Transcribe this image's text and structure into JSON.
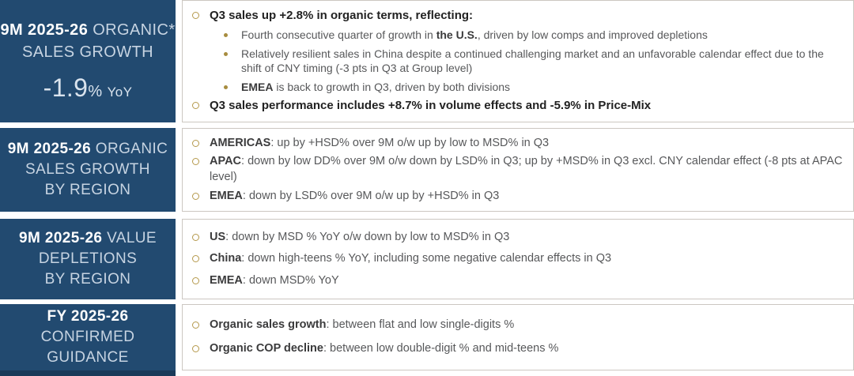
{
  "slide": {
    "colors": {
      "navy": "#224A70",
      "navy_dark": "#1A3A59",
      "gold_ring": "#B5994C",
      "gold_dot": "#A78C3F",
      "body_text": "#57585A",
      "strong_text": "#222222",
      "box_border": "#CCC7C1",
      "label_light_text": "#C7D4E2",
      "label_bold_text": "#FFFFFF"
    },
    "rows": [
      {
        "name": "organic-sales-growth",
        "label": {
          "lines": [
            [
              {
                "text": "9M 2025-26",
                "bold": true
              },
              {
                "text": " ORGANIC*",
                "bold": false
              }
            ],
            [
              {
                "text": "SALES GROWTH",
                "bold": false
              }
            ]
          ],
          "metric": {
            "value": "-1.9",
            "unit": "%",
            "suffix": "YoY"
          }
        },
        "bullets": [
          {
            "level": 1,
            "strong": true,
            "segments": [
              {
                "text": "Q3 sales up +2.8% in organic terms, reflecting:",
                "bold": true
              }
            ]
          },
          {
            "level": 2,
            "strong": false,
            "segments": [
              {
                "text": "Fourth consecutive quarter of growth in ",
                "bold": false
              },
              {
                "text": "the U.S.",
                "bold": true
              },
              {
                "text": ", driven by low comps and improved depletions",
                "bold": false
              }
            ]
          },
          {
            "level": 2,
            "strong": false,
            "segments": [
              {
                "text": "Relatively resilient sales in China despite a continued challenging market and an unfavorable calendar effect due to the shift of CNY timing (-3 pts in Q3 at Group level)",
                "bold": false
              }
            ]
          },
          {
            "level": 2,
            "strong": false,
            "segments": [
              {
                "text": "EMEA",
                "bold": true
              },
              {
                "text": " is back to growth in Q3, driven by both divisions",
                "bold": false
              }
            ]
          },
          {
            "level": 1,
            "strong": true,
            "segments": [
              {
                "text": "Q3 sales performance includes +8.7% in volume effects and -5.9% in Price-Mix",
                "bold": true
              }
            ]
          }
        ]
      },
      {
        "name": "organic-sales-growth-by-region",
        "label": {
          "lines": [
            [
              {
                "text": "9M 2025-26",
                "bold": true
              },
              {
                "text": " ORGANIC",
                "bold": false
              }
            ],
            [
              {
                "text": "SALES GROWTH",
                "bold": false
              }
            ],
            [
              {
                "text": "BY REGION",
                "bold": false
              }
            ]
          ],
          "metric": null
        },
        "bullets": [
          {
            "level": 1,
            "strong": false,
            "segments": [
              {
                "text": "AMERICAS",
                "bold": true
              },
              {
                "text": ": up by +HSD% over 9M o/w up by low to MSD% in Q3",
                "bold": false
              }
            ]
          },
          {
            "level": 1,
            "strong": false,
            "segments": [
              {
                "text": "APAC",
                "bold": true
              },
              {
                "text": ": down by low DD% over 9M o/w down by LSD% in Q3; up by +MSD% in Q3 excl. CNY calendar effect (-8 pts at APAC level)",
                "bold": false
              }
            ]
          },
          {
            "level": 1,
            "strong": false,
            "segments": [
              {
                "text": "EMEA",
                "bold": true
              },
              {
                "text": ": down by LSD% over 9M o/w up by +HSD% in Q3",
                "bold": false
              }
            ]
          }
        ]
      },
      {
        "name": "value-depletions-by-region",
        "label": {
          "lines": [
            [
              {
                "text": "9M 2025-26",
                "bold": true
              },
              {
                "text": " VALUE",
                "bold": false
              }
            ],
            [
              {
                "text": "DEPLETIONS",
                "bold": false
              }
            ],
            [
              {
                "text": "BY REGION",
                "bold": false
              }
            ]
          ],
          "metric": null
        },
        "bullets": [
          {
            "level": 1,
            "strong": false,
            "segments": [
              {
                "text": "US",
                "bold": true
              },
              {
                "text": ": down by MSD % YoY o/w down by low to MSD% in Q3",
                "bold": false
              }
            ]
          },
          {
            "level": 1,
            "strong": false,
            "segments": [
              {
                "text": "China",
                "bold": true
              },
              {
                "text": ": down high-teens % YoY, including some negative calendar effects in Q3",
                "bold": false
              }
            ]
          },
          {
            "level": 1,
            "strong": false,
            "segments": [
              {
                "text": "EMEA",
                "bold": true
              },
              {
                "text": ": down MSD% YoY",
                "bold": false
              }
            ]
          }
        ]
      },
      {
        "name": "confirmed-guidance",
        "label": {
          "lines": [
            [
              {
                "text": "FY 2025-26",
                "bold": true
              }
            ],
            [
              {
                "text": "CONFIRMED",
                "bold": false
              }
            ],
            [
              {
                "text": "GUIDANCE",
                "bold": false
              }
            ]
          ],
          "metric": null
        },
        "bullets": [
          {
            "level": 1,
            "strong": false,
            "segments": [
              {
                "text": "Organic sales growth",
                "bold": true
              },
              {
                "text": ": between flat and low single-digits %",
                "bold": false
              }
            ]
          },
          {
            "level": 1,
            "strong": false,
            "segments": [
              {
                "text": "Organic COP decline",
                "bold": true
              },
              {
                "text": ": between low double-digit % and mid-teens %",
                "bold": false
              }
            ]
          }
        ]
      }
    ]
  }
}
